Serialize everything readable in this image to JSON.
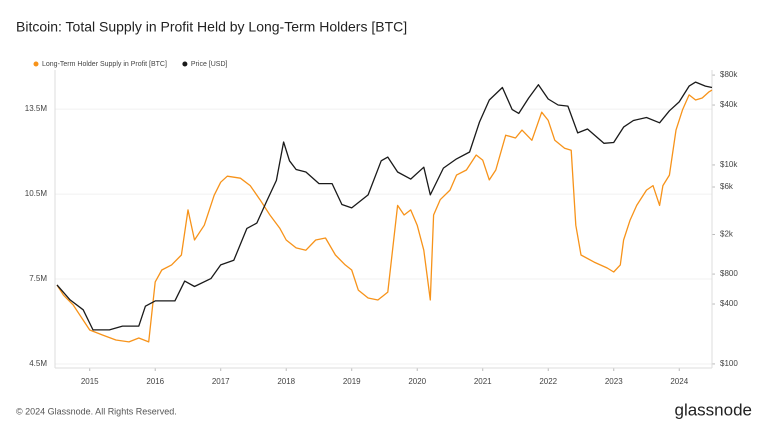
{
  "chart_data": {
    "type": "line",
    "title": "Bitcoin: Total Supply in Profit Held by Long-Term Holders [BTC]",
    "xlim": [
      2014.47,
      2024.5
    ],
    "xticks": [
      2015,
      2016,
      2017,
      2018,
      2019,
      2020,
      2021,
      2022,
      2023,
      2024
    ],
    "ylim": [
      4360000,
      14880000
    ],
    "yticks": [
      {
        "value": 4500000,
        "label": "4.5M"
      },
      {
        "value": 7500000,
        "label": "7.5M"
      },
      {
        "value": 10500000,
        "label": "10.5M"
      },
      {
        "value": 13500000,
        "label": "13.5M"
      }
    ],
    "y2lim": [
      91,
      90000
    ],
    "y2log": true,
    "y2ticks": [
      {
        "value": 100,
        "label": "$100"
      },
      {
        "value": 400,
        "label": "$400"
      },
      {
        "value": 800,
        "label": "$800"
      },
      {
        "value": 2000,
        "label": "$2k"
      },
      {
        "value": 6000,
        "label": "$6k"
      },
      {
        "value": 10000,
        "label": "$10k"
      },
      {
        "value": 40000,
        "label": "$40k"
      },
      {
        "value": 80000,
        "label": "$80k"
      }
    ],
    "grid": true,
    "legend": "top-left",
    "series": [
      {
        "name": "Long-Term Holder Supply in Profit [BTC]",
        "color": "#f7931a",
        "x": [
          2014.5,
          2014.6,
          2014.75,
          2014.9,
          2015.0,
          2015.2,
          2015.4,
          2015.6,
          2015.75,
          2015.9,
          2016.0,
          2016.1,
          2016.25,
          2016.4,
          2016.5,
          2016.6,
          2016.75,
          2016.9,
          2017.0,
          2017.1,
          2017.3,
          2017.45,
          2017.6,
          2017.75,
          2017.9,
          2018.0,
          2018.15,
          2018.3,
          2018.45,
          2018.6,
          2018.75,
          2018.9,
          2019.0,
          2019.1,
          2019.25,
          2019.4,
          2019.55,
          2019.7,
          2019.8,
          2019.9,
          2020.0,
          2020.1,
          2020.2,
          2020.25,
          2020.35,
          2020.5,
          2020.6,
          2020.75,
          2020.9,
          2021.0,
          2021.1,
          2021.2,
          2021.35,
          2021.5,
          2021.6,
          2021.75,
          2021.9,
          2022.0,
          2022.1,
          2022.25,
          2022.35,
          2022.42,
          2022.5,
          2022.7,
          2022.9,
          2023.0,
          2023.1,
          2023.15,
          2023.25,
          2023.35,
          2023.5,
          2023.6,
          2023.7,
          2023.75,
          2023.85,
          2023.95,
          2024.05,
          2024.15,
          2024.25,
          2024.35,
          2024.45,
          2024.5
        ],
        "values": [
          7290000,
          6930000,
          6580000,
          6050000,
          5700000,
          5520000,
          5350000,
          5280000,
          5420000,
          5280000,
          7400000,
          7820000,
          8000000,
          8350000,
          9940000,
          8880000,
          9400000,
          10460000,
          10920000,
          11130000,
          11060000,
          10800000,
          10300000,
          9760000,
          9300000,
          8880000,
          8600000,
          8520000,
          8880000,
          8950000,
          8350000,
          8000000,
          7820000,
          7110000,
          6830000,
          6760000,
          7040000,
          10100000,
          9760000,
          9940000,
          9400000,
          8520000,
          6760000,
          9760000,
          10300000,
          10640000,
          11170000,
          11350000,
          11880000,
          11700000,
          11000000,
          11350000,
          12580000,
          12480000,
          12760000,
          12400000,
          13390000,
          13100000,
          12400000,
          12120000,
          12050000,
          9400000,
          8350000,
          8100000,
          7890000,
          7750000,
          8000000,
          8880000,
          9580000,
          10100000,
          10640000,
          10800000,
          10100000,
          10800000,
          11170000,
          12760000,
          13470000,
          14000000,
          13820000,
          13890000,
          14100000,
          14170000
        ]
      },
      {
        "name": "Price [USD]",
        "color": "#1a1a1a",
        "axis": "y2",
        "x": [
          2014.5,
          2014.7,
          2014.9,
          2015.05,
          2015.3,
          2015.5,
          2015.75,
          2015.85,
          2016.0,
          2016.3,
          2016.45,
          2016.6,
          2016.85,
          2017.0,
          2017.2,
          2017.4,
          2017.55,
          2017.7,
          2017.85,
          2017.96,
          2018.05,
          2018.15,
          2018.3,
          2018.5,
          2018.7,
          2018.85,
          2019.0,
          2019.25,
          2019.45,
          2019.55,
          2019.7,
          2019.9,
          2020.1,
          2020.2,
          2020.4,
          2020.6,
          2020.8,
          2020.95,
          2021.1,
          2021.3,
          2021.45,
          2021.55,
          2021.7,
          2021.85,
          2022.0,
          2022.15,
          2022.3,
          2022.45,
          2022.6,
          2022.85,
          2023.0,
          2023.15,
          2023.3,
          2023.5,
          2023.7,
          2023.85,
          2024.0,
          2024.15,
          2024.25,
          2024.4,
          2024.5
        ],
        "values": [
          622,
          440,
          350,
          220,
          220,
          240,
          240,
          380,
          430,
          430,
          680,
          600,
          720,
          990,
          1100,
          2300,
          2600,
          4300,
          7000,
          17000,
          11000,
          9000,
          8500,
          6500,
          6500,
          4000,
          3700,
          5000,
          11000,
          12000,
          8500,
          7200,
          9500,
          5000,
          9300,
          11500,
          13500,
          27000,
          45000,
          60000,
          36000,
          33000,
          47000,
          64000,
          46000,
          40000,
          39000,
          21000,
          23000,
          16500,
          16800,
          24000,
          28000,
          30000,
          26500,
          35000,
          43000,
          62000,
          68000,
          62000,
          60000
        ]
      }
    ]
  },
  "footer": {
    "copyright": "© 2024 Glassnode. All Rights Reserved.",
    "logo": "glassnode"
  }
}
